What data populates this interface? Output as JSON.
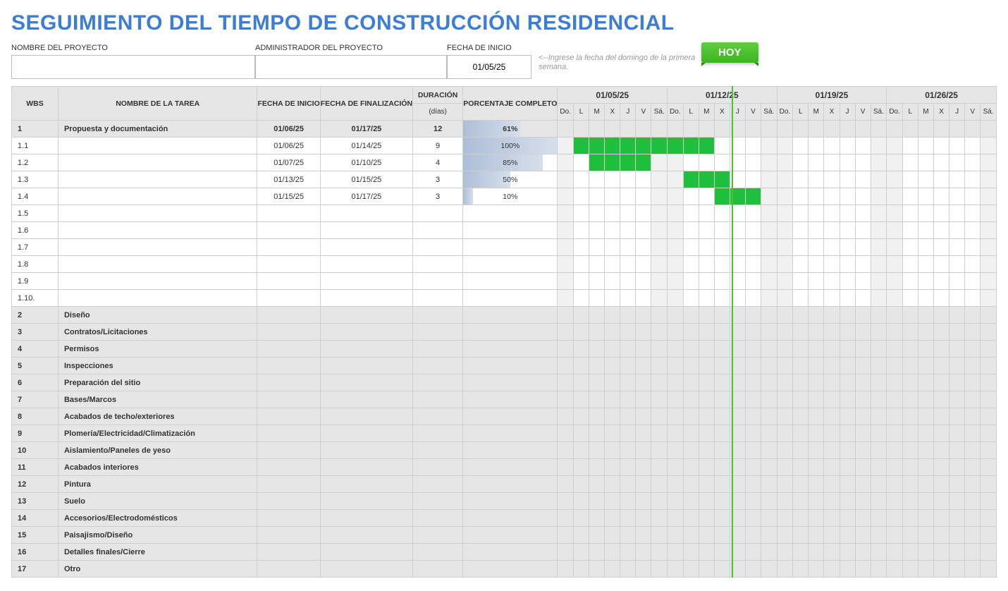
{
  "title": "SEGUIMIENTO DEL TIEMPO DE CONSTRUCCIÓN RESIDENCIAL",
  "colors": {
    "title": "#3b7dd8",
    "hoy_bg": "#4bc22c",
    "gantt_bar": "#1dbf3c",
    "header_bg": "#e6e6e6",
    "border": "#cfcfcf",
    "pct_bar_from": "#aebed7",
    "pct_bar_to": "#d6dfec",
    "weekend_bg": "#f1f1f1"
  },
  "header": {
    "project_name_label": "NOMBRE DEL PROYECTO",
    "project_name_value": "",
    "admin_label": "ADMINISTRADOR DEL PROYECTO",
    "admin_value": "",
    "start_label": "FECHA DE INICIO",
    "start_value": "01/05/25",
    "hint": "<--Ingrese la fecha del domingo de la primera semana."
  },
  "today_marker": {
    "label": "HOY",
    "week_index": 1,
    "day_index": 5
  },
  "columns": {
    "wbs": "WBS",
    "name": "NOMBRE DE LA TAREA",
    "start": "FECHA DE INICIO",
    "end": "FECHA DE FINALIZACIÓN",
    "duration": "DURACIÓN",
    "duration_sub": "(días)",
    "pct": "PORCENTAJE COMPLETO"
  },
  "calendar": {
    "day_labels": [
      "Do.",
      "L",
      "M",
      "X",
      "J",
      "V",
      "Sá."
    ],
    "weeks": [
      "01/05/25",
      "01/12/25",
      "01/19/25",
      "01/26/25"
    ]
  },
  "rows": [
    {
      "type": "section",
      "wbs": "1",
      "name": "Propuesta y documentación",
      "start": "01/06/25",
      "end": "01/17/25",
      "duration": "12",
      "pct": 61
    },
    {
      "type": "task",
      "wbs": "1.1",
      "name": "",
      "start": "01/06/25",
      "end": "01/14/25",
      "duration": "9",
      "pct": 100,
      "bar_start": 1,
      "bar_end": 9
    },
    {
      "type": "task",
      "wbs": "1.2",
      "name": "",
      "start": "01/07/25",
      "end": "01/10/25",
      "duration": "4",
      "pct": 85,
      "bar_start": 2,
      "bar_end": 5
    },
    {
      "type": "task",
      "wbs": "1.3",
      "name": "",
      "start": "01/13/25",
      "end": "01/15/25",
      "duration": "3",
      "pct": 50,
      "bar_start": 8,
      "bar_end": 10
    },
    {
      "type": "task",
      "wbs": "1.4",
      "name": "",
      "start": "01/15/25",
      "end": "01/17/25",
      "duration": "3",
      "pct": 10,
      "bar_start": 10,
      "bar_end": 12
    },
    {
      "type": "task",
      "wbs": "1.5",
      "name": "",
      "start": "",
      "end": "",
      "duration": "",
      "pct": null
    },
    {
      "type": "task",
      "wbs": "1.6",
      "name": "",
      "start": "",
      "end": "",
      "duration": "",
      "pct": null
    },
    {
      "type": "task",
      "wbs": "1.7",
      "name": "",
      "start": "",
      "end": "",
      "duration": "",
      "pct": null
    },
    {
      "type": "task",
      "wbs": "1.8",
      "name": "",
      "start": "",
      "end": "",
      "duration": "",
      "pct": null
    },
    {
      "type": "task",
      "wbs": "1.9",
      "name": "",
      "start": "",
      "end": "",
      "duration": "",
      "pct": null
    },
    {
      "type": "task",
      "wbs": "1.10.",
      "name": "",
      "start": "",
      "end": "",
      "duration": "",
      "pct": null
    },
    {
      "type": "section",
      "wbs": "2",
      "name": "Diseño"
    },
    {
      "type": "section",
      "wbs": "3",
      "name": "Contratos/Licitaciones"
    },
    {
      "type": "section",
      "wbs": "4",
      "name": "Permisos"
    },
    {
      "type": "section",
      "wbs": "5",
      "name": "Inspecciones"
    },
    {
      "type": "section",
      "wbs": "6",
      "name": "Preparación del sitio"
    },
    {
      "type": "section",
      "wbs": "7",
      "name": "Bases/Marcos"
    },
    {
      "type": "section",
      "wbs": "8",
      "name": "Acabados de techo/exteriores"
    },
    {
      "type": "section",
      "wbs": "9",
      "name": "Plomería/Electricidad/Climatización"
    },
    {
      "type": "section",
      "wbs": "10",
      "name": "Aislamiento/Paneles de yeso"
    },
    {
      "type": "section",
      "wbs": "11",
      "name": "Acabados interiores"
    },
    {
      "type": "section",
      "wbs": "12",
      "name": "Pintura"
    },
    {
      "type": "section",
      "wbs": "13",
      "name": "Suelo"
    },
    {
      "type": "section",
      "wbs": "14",
      "name": "Accesorios/Electrodomésticos"
    },
    {
      "type": "section",
      "wbs": "15",
      "name": "Paisajismo/Diseño"
    },
    {
      "type": "section",
      "wbs": "16",
      "name": "Detalles finales/Cierre"
    },
    {
      "type": "section",
      "wbs": "17",
      "name": "Otro"
    }
  ]
}
